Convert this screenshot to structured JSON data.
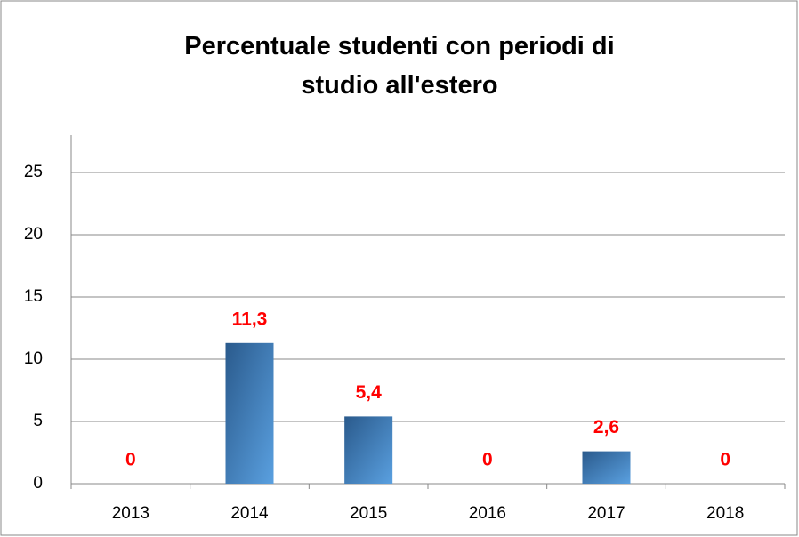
{
  "chart_data": {
    "type": "bar",
    "title": "Percentuale studenti con periodi di studio all'estero",
    "categories": [
      "2013",
      "2014",
      "2015",
      "2016",
      "2017",
      "2018"
    ],
    "values": [
      0,
      11.3,
      5.4,
      0,
      2.6,
      0
    ],
    "value_labels": [
      "0",
      "11,3",
      "5,4",
      "0",
      "2,6",
      "0"
    ],
    "color": "#3a78b8",
    "label_color": "#ff0000",
    "ylim": [
      0,
      28
    ],
    "yticks": [
      0,
      5,
      10,
      15,
      20,
      25
    ],
    "grid": true
  }
}
